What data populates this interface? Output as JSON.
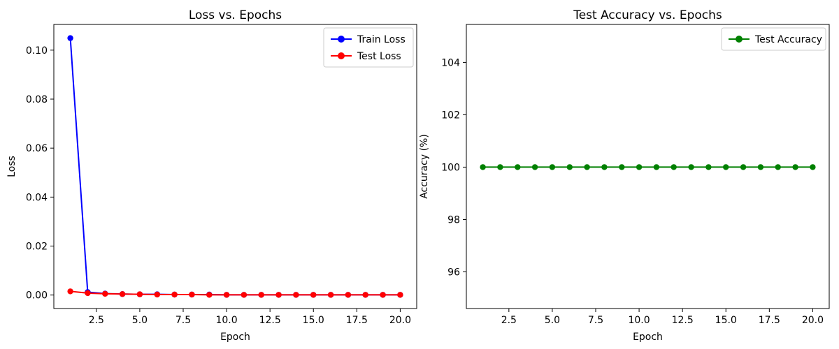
{
  "figure": {
    "background": "#ffffff",
    "axis_color": "#000000",
    "legend_border_color": "#cccccc",
    "legend_background": "#ffffff"
  },
  "chart_data": [
    {
      "type": "line",
      "id": "loss-chart",
      "title": "Loss vs. Epochs",
      "xlabel": "Epoch",
      "ylabel": "Loss",
      "xlim": [
        0.05,
        20.95
      ],
      "ylim": [
        -0.0055,
        0.1105
      ],
      "grid": false,
      "legend_position": "upper right",
      "xticks": {
        "values": [
          2.5,
          5.0,
          7.5,
          10.0,
          12.5,
          15.0,
          17.5,
          20.0
        ],
        "labels": [
          "2.5",
          "5.0",
          "7.5",
          "10.0",
          "12.5",
          "15.0",
          "17.5",
          "20.0"
        ]
      },
      "yticks": {
        "values": [
          0.0,
          0.02,
          0.04,
          0.06,
          0.08,
          0.1
        ],
        "labels": [
          "0.00",
          "0.02",
          "0.04",
          "0.06",
          "0.08",
          "0.10"
        ]
      },
      "x": [
        1,
        2,
        3,
        4,
        5,
        6,
        7,
        8,
        9,
        10,
        11,
        12,
        13,
        14,
        15,
        16,
        17,
        18,
        19,
        20
      ],
      "series": [
        {
          "name": "Train Loss",
          "color": "#0000ff",
          "marker": "circle",
          "values": [
            0.1049,
            0.0012,
            0.0006,
            0.0004,
            0.0003,
            0.0003,
            0.0002,
            0.0002,
            0.0002,
            0.0001,
            0.0001,
            0.0001,
            0.0001,
            0.0001,
            0.0001,
            0.0001,
            0.0001,
            0.0001,
            0.0001,
            0.0001
          ]
        },
        {
          "name": "Test Loss",
          "color": "#ff0000",
          "marker": "circle",
          "values": [
            0.0015,
            0.0008,
            0.0005,
            0.0004,
            0.0003,
            0.0002,
            0.0002,
            0.0002,
            0.0001,
            0.0001,
            0.0001,
            0.0001,
            0.0001,
            0.0001,
            0.0001,
            0.0001,
            0.0001,
            0.0001,
            0.0001,
            0.0001
          ]
        }
      ]
    },
    {
      "type": "line",
      "id": "accuracy-chart",
      "title": "Test Accuracy vs. Epochs",
      "xlabel": "Epoch",
      "ylabel": "Accuracy (%)",
      "xlim": [
        0.05,
        20.95
      ],
      "ylim": [
        94.6,
        105.45
      ],
      "grid": false,
      "legend_position": "upper right",
      "xticks": {
        "values": [
          2.5,
          5.0,
          7.5,
          10.0,
          12.5,
          15.0,
          17.5,
          20.0
        ],
        "labels": [
          "2.5",
          "5.0",
          "7.5",
          "10.0",
          "12.5",
          "15.0",
          "17.5",
          "20.0"
        ]
      },
      "yticks": {
        "values": [
          96,
          98,
          100,
          102,
          104
        ],
        "labels": [
          "96",
          "98",
          "100",
          "102",
          "104"
        ]
      },
      "x": [
        1,
        2,
        3,
        4,
        5,
        6,
        7,
        8,
        9,
        10,
        11,
        12,
        13,
        14,
        15,
        16,
        17,
        18,
        19,
        20
      ],
      "series": [
        {
          "name": "Test Accuracy",
          "color": "#008000",
          "marker": "circle",
          "values": [
            100,
            100,
            100,
            100,
            100,
            100,
            100,
            100,
            100,
            100,
            100,
            100,
            100,
            100,
            100,
            100,
            100,
            100,
            100,
            100
          ]
        }
      ]
    }
  ]
}
